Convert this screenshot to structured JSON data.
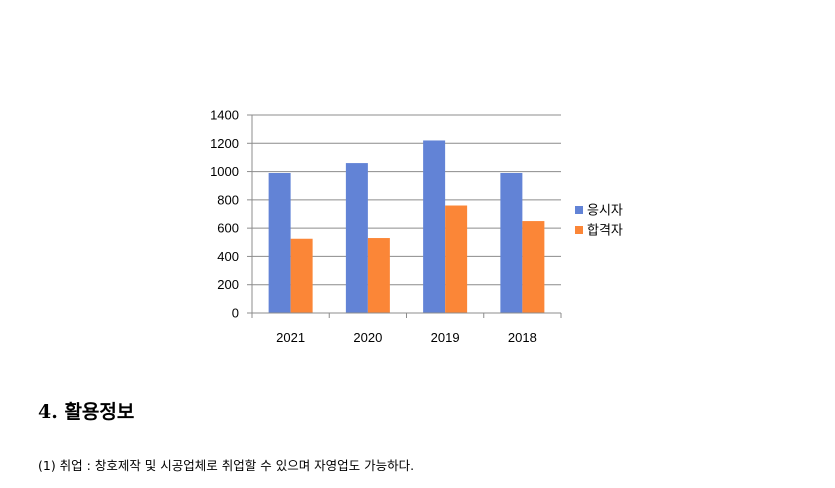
{
  "chart_data": {
    "type": "bar",
    "categories": [
      "2021",
      "2020",
      "2019",
      "2018"
    ],
    "series": [
      {
        "name": "응시자",
        "color": "#6283d6",
        "values": [
          990,
          1060,
          1220,
          990
        ]
      },
      {
        "name": "합격자",
        "color": "#fb8637",
        "values": [
          525,
          530,
          760,
          650
        ]
      }
    ],
    "ylim": [
      0,
      1400
    ],
    "yticks": [
      0,
      200,
      400,
      600,
      800,
      1000,
      1200,
      1400
    ],
    "grid": true,
    "legend_position": "right",
    "title": "",
    "xlabel": "",
    "ylabel": ""
  },
  "section": {
    "heading": "4. 활용정보",
    "item1": "(1) 취업 : 창호제작 및 시공업체로 취업할 수 있으며 자영업도 가능하다."
  }
}
